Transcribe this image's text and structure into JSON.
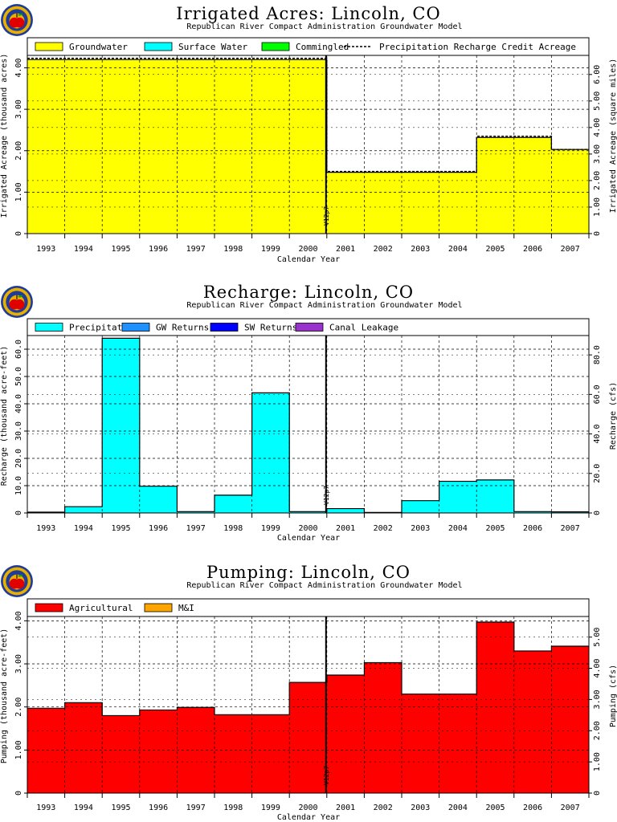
{
  "chart_data": [
    {
      "type": "area",
      "title": "Irrigated Acres: Lincoln, CO",
      "subtitle": "Republican River Compact Administration Groundwater Model",
      "xlabel": "Calendar Year",
      "ylabel": "Irrigated Acreage (thousand acres)",
      "ylabel_right": "Irrigated Acreage (square miles)",
      "categories": [
        "1993",
        "1994",
        "1995",
        "1996",
        "1997",
        "1998",
        "1999",
        "2000",
        "2001",
        "2002",
        "2003",
        "2004",
        "2005",
        "2006",
        "2007"
      ],
      "ylim": [
        0,
        4.3
      ],
      "yticks": [
        0,
        1.0,
        2.0,
        3.0,
        4.0
      ],
      "ytick_labels": [
        "0",
        "1.00",
        "2.00",
        "3.00",
        "4.00"
      ],
      "ylim_right": [
        0,
        6.72
      ],
      "yticks_right": [
        0,
        1.0,
        2.0,
        3.0,
        4.0,
        5.0,
        6.0
      ],
      "ytick_labels_right": [
        "0",
        "1.00",
        "2.00",
        "3.00",
        "4.00",
        "5.00",
        "6.00"
      ],
      "series": [
        {
          "name": "Groundwater",
          "color": "#ffff00",
          "values": [
            4.2,
            4.2,
            4.2,
            4.2,
            4.2,
            4.2,
            4.2,
            4.2,
            1.48,
            1.48,
            1.48,
            1.48,
            2.32,
            2.32,
            2.03
          ]
        },
        {
          "name": "Surface Water",
          "color": "#00ffff",
          "values": [
            0,
            0,
            0,
            0,
            0,
            0,
            0,
            0,
            0,
            0,
            0,
            0,
            0,
            0,
            0
          ]
        },
        {
          "name": "Commingled",
          "color": "#00ff00",
          "values": [
            0,
            0,
            0,
            0,
            0,
            0,
            0,
            0,
            0,
            0,
            0,
            0,
            0,
            0,
            0
          ]
        }
      ],
      "line_series": {
        "name": "Precipitation Recharge Credit Acreage",
        "style": "dashed",
        "values": [
          4.23,
          4.23,
          4.23,
          4.23,
          4.23,
          4.23,
          4.23,
          4.23,
          1.5,
          1.5,
          1.5,
          1.5,
          2.35,
          2.35,
          2.03
        ]
      },
      "marker": {
        "label": "V12p7",
        "x": 8
      },
      "grid": true,
      "legend_position": "top"
    },
    {
      "type": "area",
      "title": "Recharge: Lincoln, CO",
      "subtitle": "Republican River Compact Administration Groundwater Model",
      "xlabel": "Calendar Year",
      "ylabel": "Recharge (thousand acre-feet)",
      "ylabel_right": "Recharge (cfs)",
      "categories": [
        "1993",
        "1994",
        "1995",
        "1996",
        "1997",
        "1998",
        "1999",
        "2000",
        "2001",
        "2002",
        "2003",
        "2004",
        "2005",
        "2006",
        "2007"
      ],
      "ylim": [
        0,
        65
      ],
      "yticks": [
        0,
        10,
        20,
        30,
        40,
        50,
        60
      ],
      "ytick_labels": [
        "0",
        "10.0",
        "20.0",
        "30.0",
        "40.0",
        "50.0",
        "60.0"
      ],
      "ylim_right": [
        0,
        89.8
      ],
      "yticks_right": [
        0,
        20,
        40,
        60,
        80
      ],
      "ytick_labels_right": [
        "0",
        "20.0",
        "40.0",
        "60.0",
        "80.0"
      ],
      "series": [
        {
          "name": "Precipitation",
          "color": "#00ffff",
          "values": [
            0.3,
            2.3,
            64,
            9.8,
            0.5,
            6.5,
            44,
            0.5,
            1.6,
            0.2,
            4.5,
            11.6,
            12.1,
            0.5,
            0.4
          ]
        },
        {
          "name": "GW Returns",
          "color": "#1e90ff",
          "values": [
            0,
            0,
            0,
            0,
            0,
            0,
            0,
            0,
            0,
            0,
            0,
            0,
            0,
            0,
            0
          ]
        },
        {
          "name": "SW Returns",
          "color": "#0000ff",
          "values": [
            0,
            0,
            0,
            0,
            0,
            0,
            0,
            0,
            0,
            0,
            0,
            0,
            0,
            0,
            0
          ]
        },
        {
          "name": "Canal Leakage",
          "color": "#9932cc",
          "values": [
            0,
            0,
            0,
            0,
            0,
            0,
            0,
            0,
            0,
            0,
            0,
            0,
            0,
            0,
            0
          ]
        }
      ],
      "marker": {
        "label": "V12p7",
        "x": 8
      },
      "grid": true,
      "legend_position": "top"
    },
    {
      "type": "area",
      "title": "Pumping: Lincoln, CO",
      "subtitle": "Republican River Compact Administration Groundwater Model",
      "xlabel": "Calendar Year",
      "ylabel": "Pumping (thousand acre-feet)",
      "ylabel_right": "Pumping (cfs)",
      "categories": [
        "1993",
        "1994",
        "1995",
        "1996",
        "1997",
        "1998",
        "1999",
        "2000",
        "2001",
        "2002",
        "2003",
        "2004",
        "2005",
        "2006",
        "2007"
      ],
      "ylim": [
        0,
        4.1
      ],
      "yticks": [
        0,
        1.0,
        2.0,
        3.0,
        4.0
      ],
      "ytick_labels": [
        "0",
        "1.00",
        "2.00",
        "3.00",
        "4.00"
      ],
      "ylim_right": [
        0,
        5.66
      ],
      "yticks_right": [
        0,
        1.0,
        2.0,
        3.0,
        4.0,
        5.0
      ],
      "ytick_labels_right": [
        "0",
        "1.00",
        "2.00",
        "3.00",
        "4.00",
        "5.00"
      ],
      "series": [
        {
          "name": "Agricultural",
          "color": "#ff0000",
          "values": [
            1.97,
            2.1,
            1.8,
            1.93,
            1.99,
            1.82,
            1.82,
            2.57,
            2.74,
            3.03,
            2.3,
            2.3,
            3.97,
            3.3,
            3.41
          ]
        },
        {
          "name": "M&I",
          "color": "#ffa500",
          "values": [
            0,
            0,
            0,
            0,
            0,
            0,
            0,
            0,
            0,
            0,
            0,
            0,
            0,
            0,
            0
          ]
        }
      ],
      "marker": {
        "label": "V12p7",
        "x": 8
      },
      "grid": true,
      "legend_position": "top"
    }
  ]
}
